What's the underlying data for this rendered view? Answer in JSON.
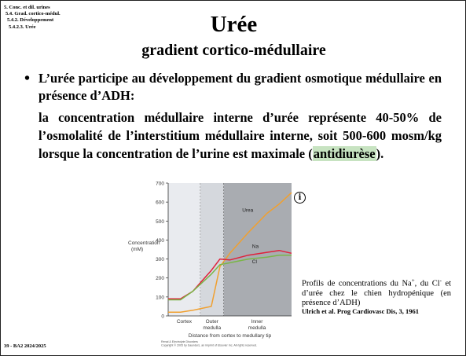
{
  "breadcrumb": [
    "5. Conc. et dil. urines",
    "5.4. Grad. cortico-médul.",
    "5.4.2. Développement",
    "5.4.2.3. Urée"
  ],
  "title": "Urée",
  "subtitle": "gradient cortico-médullaire",
  "bullet": {
    "marker": "•",
    "text": "L’urée participe au développement du gradient osmotique médullaire en présence d’ADH:"
  },
  "detail": {
    "before": "la concentration médullaire interne d’urée représente 40-50% de l’osmolalité de l’interstitium médullaire interne, soit 500-600 mosm/kg lorsque la concentration de l’urine est maximale (",
    "highlight": "antidiurèse",
    "after": ")."
  },
  "info_icon": "info-circle-icon",
  "caption": {
    "line1": "Profils de concentrations du Na",
    "sup1": "+",
    "line2": ", du Cl",
    "sup2": "-",
    "line3": " et d’urée chez le chien hydropénique (en présence d’ADH)",
    "ref": "Ulrich et al. Prog Cardiovasc Dis, 3, 1961"
  },
  "page_number": "39 - BA2 2024/2025",
  "colors": {
    "urea": "#f0a030",
    "na": "#e0203a",
    "cl": "#7ab648",
    "highlight": "#c7e3c1"
  },
  "chart_data": {
    "type": "line",
    "ylabel": "Concentration (mM)",
    "xlabel": "Distance from cortex to medullary tip",
    "ylim": [
      0,
      700
    ],
    "yticks": [
      0,
      100,
      200,
      300,
      400,
      500,
      600,
      700
    ],
    "regions": [
      "Cortex",
      "Outer medulla",
      "Inner medulla"
    ],
    "x": [
      0,
      0.1,
      0.2,
      0.35,
      0.42,
      0.5,
      0.65,
      0.8,
      0.9,
      1.0
    ],
    "series": [
      {
        "name": "Urea",
        "values": [
          20,
          20,
          30,
          50,
          260,
          330,
          440,
          540,
          590,
          650
        ]
      },
      {
        "name": "Na",
        "values": [
          90,
          90,
          130,
          240,
          300,
          295,
          320,
          335,
          345,
          330
        ]
      },
      {
        "name": "Cl",
        "values": [
          85,
          85,
          130,
          220,
          270,
          280,
          300,
          310,
          320,
          320
        ]
      }
    ],
    "footer": [
      "Renal & Electrolyte Disorders",
      "Copyright © 2005 by Saunders, an imprint of Elsevier Inc. All rights reserved."
    ]
  }
}
